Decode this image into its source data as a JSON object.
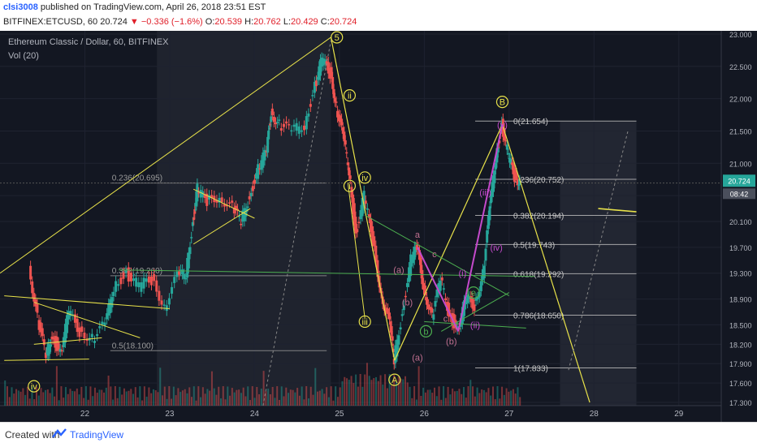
{
  "header": {
    "user": "clsi3008",
    "published": " published on TradingView.com, April 26, 2018 23:51 EST",
    "symbol": "BITFINEX:ETCUSD, 60",
    "last": "20.724",
    "change": "−0.336 (−1.6%)",
    "o_label": "O:",
    "o": "20.539",
    "h_label": "H:",
    "h": "20.762",
    "l_label": "L:",
    "l": "20.429",
    "c_label": "C:",
    "c": "20.724"
  },
  "legend": {
    "title": "Ethereum Classic / Dollar, 60, BITFINEX",
    "vol": "Vol (20)"
  },
  "footer": {
    "created": "Created with",
    "brand": "TradingView"
  },
  "colors": {
    "bg": "#131722",
    "up": "#26a69a",
    "down": "#ef5350",
    "fib": "#9a9a9a",
    "yellow": "#e8e24a",
    "green": "#4caf50",
    "purple": "#c54acc",
    "pink": "#c07090",
    "price_tag": "#26a69a"
  },
  "chart_data": {
    "type": "line",
    "title": "Ethereum Classic / Dollar, 60, BITFINEX",
    "x_ticks": [
      "22",
      "23",
      "24",
      "25",
      "26",
      "27",
      "28",
      "29"
    ],
    "y_ticks": [
      "23.000",
      "22.500",
      "22.000",
      "21.500",
      "21.000",
      "20.500",
      "20.100",
      "19.700",
      "19.300",
      "18.900",
      "18.500",
      "18.200",
      "17.900",
      "17.600",
      "17.300"
    ],
    "ylim": [
      17.25,
      23.05
    ],
    "last_price": "20.724",
    "countdown": "08:42",
    "price_path": [
      {
        "x": 21.35,
        "y": 19.4
      },
      {
        "x": 21.45,
        "y": 18.6
      },
      {
        "x": 21.55,
        "y": 18.0
      },
      {
        "x": 21.62,
        "y": 18.35
      },
      {
        "x": 21.72,
        "y": 18.05
      },
      {
        "x": 21.82,
        "y": 18.7
      },
      {
        "x": 21.95,
        "y": 18.4
      },
      {
        "x": 22.1,
        "y": 18.3
      },
      {
        "x": 22.25,
        "y": 18.5
      },
      {
        "x": 22.35,
        "y": 19.1
      },
      {
        "x": 22.5,
        "y": 19.3
      },
      {
        "x": 22.65,
        "y": 19.1
      },
      {
        "x": 22.8,
        "y": 19.2
      },
      {
        "x": 22.95,
        "y": 18.8
      },
      {
        "x": 23.1,
        "y": 19.25
      },
      {
        "x": 23.2,
        "y": 19.3
      },
      {
        "x": 23.28,
        "y": 20.1
      },
      {
        "x": 23.33,
        "y": 20.6
      },
      {
        "x": 23.45,
        "y": 20.4
      },
      {
        "x": 23.6,
        "y": 20.5
      },
      {
        "x": 23.75,
        "y": 20.3
      },
      {
        "x": 23.85,
        "y": 20.1
      },
      {
        "x": 23.95,
        "y": 20.5
      },
      {
        "x": 24.05,
        "y": 20.9
      },
      {
        "x": 24.15,
        "y": 21.2
      },
      {
        "x": 24.2,
        "y": 21.8
      },
      {
        "x": 24.3,
        "y": 21.6
      },
      {
        "x": 24.45,
        "y": 21.5
      },
      {
        "x": 24.6,
        "y": 21.6
      },
      {
        "x": 24.72,
        "y": 22.2
      },
      {
        "x": 24.8,
        "y": 22.6
      },
      {
        "x": 24.9,
        "y": 22.4
      },
      {
        "x": 24.97,
        "y": 21.9
      },
      {
        "x": 25.05,
        "y": 21.4
      },
      {
        "x": 25.12,
        "y": 20.9
      },
      {
        "x": 25.2,
        "y": 19.9
      },
      {
        "x": 25.3,
        "y": 20.5
      },
      {
        "x": 25.4,
        "y": 19.8
      },
      {
        "x": 25.5,
        "y": 19.0
      },
      {
        "x": 25.6,
        "y": 18.5
      },
      {
        "x": 25.65,
        "y": 17.95
      },
      {
        "x": 25.75,
        "y": 18.7
      },
      {
        "x": 25.85,
        "y": 19.5
      },
      {
        "x": 25.92,
        "y": 19.7
      },
      {
        "x": 26.0,
        "y": 19.1
      },
      {
        "x": 26.1,
        "y": 18.6
      },
      {
        "x": 26.2,
        "y": 19.2
      },
      {
        "x": 26.3,
        "y": 18.7
      },
      {
        "x": 26.4,
        "y": 18.4
      },
      {
        "x": 26.5,
        "y": 18.9
      },
      {
        "x": 26.6,
        "y": 18.8
      },
      {
        "x": 26.7,
        "y": 19.3
      },
      {
        "x": 26.78,
        "y": 20.3
      },
      {
        "x": 26.85,
        "y": 21.1
      },
      {
        "x": 26.92,
        "y": 21.6
      },
      {
        "x": 27.0,
        "y": 21.1
      },
      {
        "x": 27.07,
        "y": 20.8
      },
      {
        "x": 27.13,
        "y": 20.72
      }
    ],
    "fib_left": [
      {
        "label": "0.236(20.695)",
        "price": 20.695
      },
      {
        "label": "0.382(19.260)",
        "price": 19.26
      },
      {
        "label": "0.5(18.100)",
        "price": 18.1
      }
    ],
    "fib_right": [
      {
        "label": "0(21.654)",
        "price": 21.654
      },
      {
        "label": "0.236(20.752)",
        "price": 20.752
      },
      {
        "label": "0.382(20.194)",
        "price": 20.194
      },
      {
        "label": "0.5(19.743)",
        "price": 19.743
      },
      {
        "label": "0.618(19.292)",
        "price": 19.292
      },
      {
        "label": "0.786(18.650)",
        "price": 18.65
      },
      {
        "label": "1(17.833)",
        "price": 17.833
      }
    ],
    "wave_labels": [
      {
        "text": "iv",
        "x": 21.4,
        "y": 17.55,
        "color": "yellow"
      },
      {
        "text": "5",
        "x": 24.97,
        "y": 22.95,
        "color": "yellow"
      },
      {
        "text": "ii",
        "x": 25.12,
        "y": 22.05,
        "color": "yellow"
      },
      {
        "text": "i",
        "x": 25.12,
        "y": 20.65,
        "color": "yellow"
      },
      {
        "text": "iv",
        "x": 25.3,
        "y": 20.78,
        "color": "yellow"
      },
      {
        "text": "iii",
        "x": 25.3,
        "y": 18.55,
        "color": "yellow"
      },
      {
        "text": "A",
        "x": 25.65,
        "y": 17.65,
        "color": "yellow"
      },
      {
        "text": "B",
        "x": 26.92,
        "y": 21.95,
        "color": "yellow"
      },
      {
        "text": "a",
        "x": 25.92,
        "y": 19.9,
        "color": "pink"
      },
      {
        "text": "c",
        "x": 26.12,
        "y": 19.6,
        "color": "pink"
      },
      {
        "text": "c",
        "x": 26.25,
        "y": 18.6,
        "color": "pink"
      },
      {
        "text": "(a)",
        "x": 25.7,
        "y": 19.35,
        "color": "pink"
      },
      {
        "text": "(b)",
        "x": 25.8,
        "y": 18.85,
        "color": "pink"
      },
      {
        "text": "(a)",
        "x": 25.92,
        "y": 18.0,
        "color": "pink"
      },
      {
        "text": "(b)",
        "x": 26.32,
        "y": 18.25,
        "color": "pink"
      },
      {
        "text": "b",
        "x": 26.02,
        "y": 18.4,
        "color": "green"
      },
      {
        "text": "e",
        "x": 26.58,
        "y": 19.0,
        "color": "green"
      },
      {
        "text": "(i)",
        "x": 26.45,
        "y": 19.3,
        "color": "purple"
      },
      {
        "text": "(ii)",
        "x": 26.6,
        "y": 18.5,
        "color": "purple"
      },
      {
        "text": "(iii)",
        "x": 26.72,
        "y": 20.55,
        "color": "purple"
      },
      {
        "text": "(iv)",
        "x": 26.85,
        "y": 19.7,
        "color": "purple"
      },
      {
        "text": "(v)",
        "x": 26.92,
        "y": 21.6,
        "color": "purple"
      }
    ]
  }
}
